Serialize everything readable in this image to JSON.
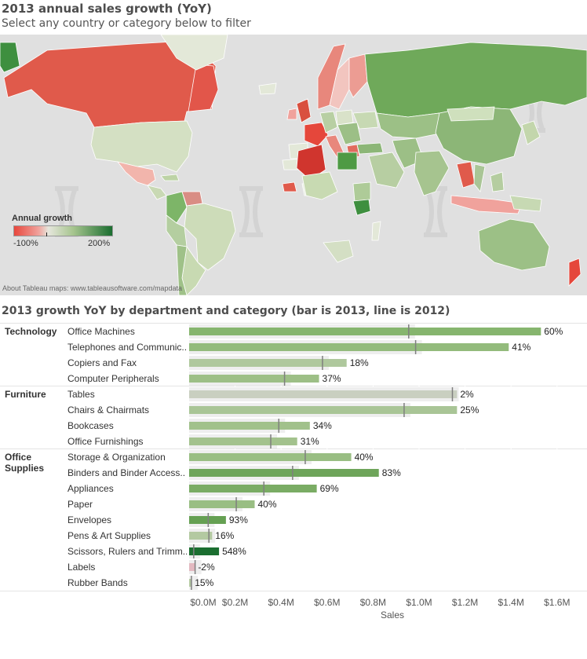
{
  "header": {
    "title": "2013 annual sales growth (YoY)",
    "subtitle": "Select any country or category below to filter"
  },
  "map": {
    "legend_title": "Annual growth",
    "legend_min": "-100%",
    "legend_max": "200%",
    "attribution": "About Tableau maps: www.tableausoftware.com/mapdata",
    "colors": {
      "decline": "#e8473d",
      "neutral": "#e6e6dc",
      "growth": "#1b6e30",
      "background": "#e0e0e0"
    }
  },
  "chart_data": {
    "type": "bar",
    "title": "2013 growth YoY by department and category (bar is 2013, line is 2012)",
    "xlabel": "Sales",
    "xlim": [
      0,
      1.7
    ],
    "x_ticks": [
      "$0.0M",
      "$0.2M",
      "$0.4M",
      "$0.6M",
      "$0.8M",
      "$1.0M",
      "$1.2M",
      "$1.4M",
      "$1.6M"
    ],
    "x_tick_values": [
      0,
      0.2,
      0.4,
      0.6,
      0.8,
      1.0,
      1.2,
      1.4,
      1.6
    ],
    "departments": [
      {
        "name": "Technology",
        "categories": [
          {
            "name": "Office Machines",
            "sales_2013": 1.53,
            "sales_2012": 0.955,
            "growth": "60%",
            "color": "#86b56e"
          },
          {
            "name": "Telephones and Communic..",
            "sales_2013": 1.39,
            "sales_2012": 0.985,
            "growth": "41%",
            "color": "#93bb7c"
          },
          {
            "name": "Copiers and Fax",
            "sales_2013": 0.685,
            "sales_2012": 0.58,
            "growth": "18%",
            "color": "#afc89d"
          },
          {
            "name": "Computer Peripherals",
            "sales_2013": 0.565,
            "sales_2012": 0.415,
            "growth": "37%",
            "color": "#9dbf86"
          }
        ]
      },
      {
        "name": "Furniture",
        "categories": [
          {
            "name": "Tables",
            "sales_2013": 1.165,
            "sales_2012": 1.145,
            "growth": "2%",
            "color": "#c9cfc0"
          },
          {
            "name": "Chairs & Chairmats",
            "sales_2013": 1.165,
            "sales_2012": 0.935,
            "growth": "25%",
            "color": "#a9c596"
          },
          {
            "name": "Bookcases",
            "sales_2013": 0.525,
            "sales_2012": 0.39,
            "growth": "34%",
            "color": "#a1c18b"
          },
          {
            "name": "Office Furnishings",
            "sales_2013": 0.47,
            "sales_2012": 0.355,
            "growth": "31%",
            "color": "#a3c28d"
          }
        ]
      },
      {
        "name": "Office Supplies",
        "categories": [
          {
            "name": "Storage & Organization",
            "sales_2013": 0.705,
            "sales_2012": 0.505,
            "growth": "40%",
            "color": "#99be83"
          },
          {
            "name": "Binders and Binder Access..",
            "sales_2013": 0.825,
            "sales_2012": 0.45,
            "growth": "83%",
            "color": "#6ea55a"
          },
          {
            "name": "Appliances",
            "sales_2013": 0.555,
            "sales_2012": 0.325,
            "growth": "69%",
            "color": "#7aac64"
          },
          {
            "name": "Paper",
            "sales_2013": 0.285,
            "sales_2012": 0.205,
            "growth": "40%",
            "color": "#99be83"
          },
          {
            "name": "Envelopes",
            "sales_2013": 0.16,
            "sales_2012": 0.083,
            "growth": "93%",
            "color": "#65a052"
          },
          {
            "name": "Pens & Art Supplies",
            "sales_2013": 0.1,
            "sales_2012": 0.086,
            "growth": "16%",
            "color": "#b3c9a1"
          },
          {
            "name": "Scissors, Rulers and Trimm..",
            "sales_2013": 0.13,
            "sales_2012": 0.02,
            "growth": "548%",
            "color": "#1b6e30"
          },
          {
            "name": "Labels",
            "sales_2013": 0.025,
            "sales_2012": 0.026,
            "growth": "-2%",
            "color": "#e3b9c0"
          },
          {
            "name": "Rubber Bands",
            "sales_2013": 0.011,
            "sales_2012": 0.01,
            "growth": "15%",
            "color": "#b5caa3"
          }
        ]
      }
    ]
  }
}
